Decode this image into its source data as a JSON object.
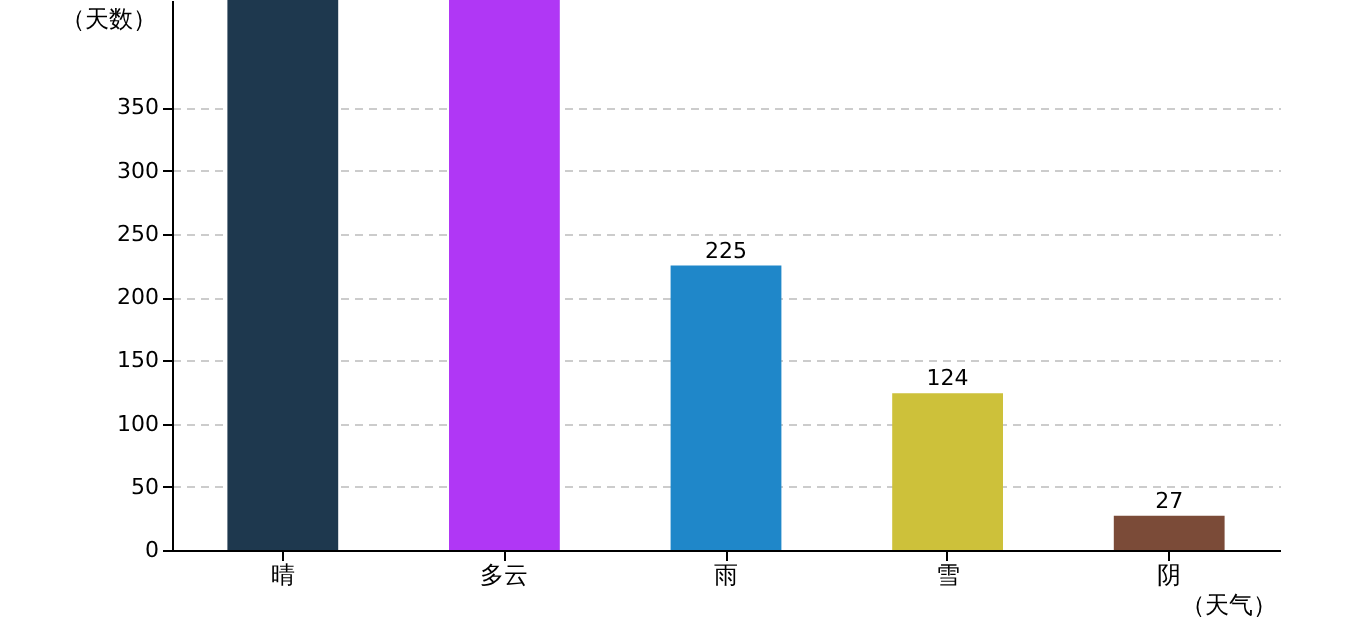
{
  "chart_data": {
    "type": "bar",
    "xlabel": "（天气）",
    "ylabel": "（天数）",
    "categories": [
      "晴",
      "多云",
      "雨",
      "雪",
      "阴"
    ],
    "values": [
      435,
      435,
      225,
      124,
      27
    ],
    "colors": [
      "#1e384e",
      "#b037f5",
      "#1f87c9",
      "#cdc13a",
      "#7b4b38"
    ],
    "value_labels": [
      null,
      null,
      "225",
      "124",
      "27"
    ],
    "ylim": [
      0,
      435
    ],
    "yticks": [
      0,
      50,
      100,
      150,
      200,
      250,
      300,
      350
    ],
    "grid": "y"
  }
}
